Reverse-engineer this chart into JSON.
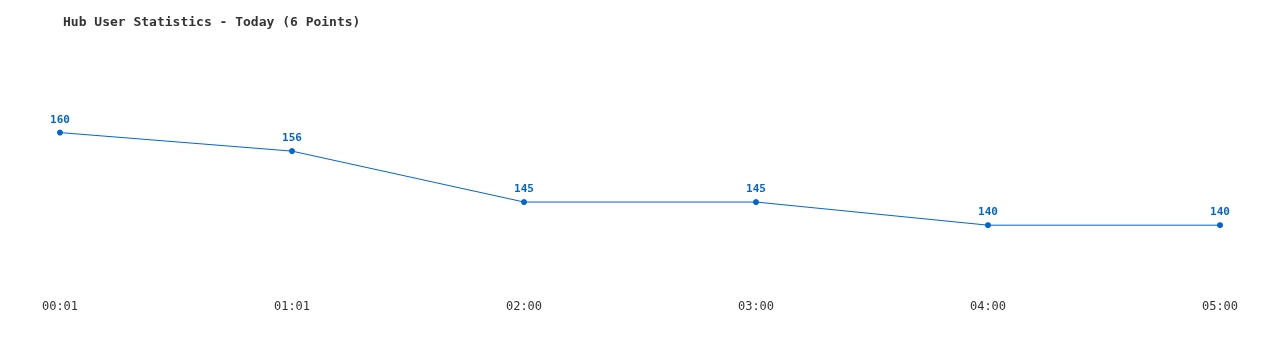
{
  "chart_data": {
    "type": "line",
    "title": "Hub User Statistics - Today (6 Points)",
    "categories": [
      "00:01",
      "01:01",
      "02:00",
      "03:00",
      "04:00",
      "05:00"
    ],
    "series": [
      {
        "color": "#0066cc",
        "values": [
          160,
          156,
          145,
          145,
          140,
          140
        ]
      }
    ],
    "data_labels": true,
    "marker": "circle",
    "line_style": "solid",
    "tick_labels": "x"
  }
}
